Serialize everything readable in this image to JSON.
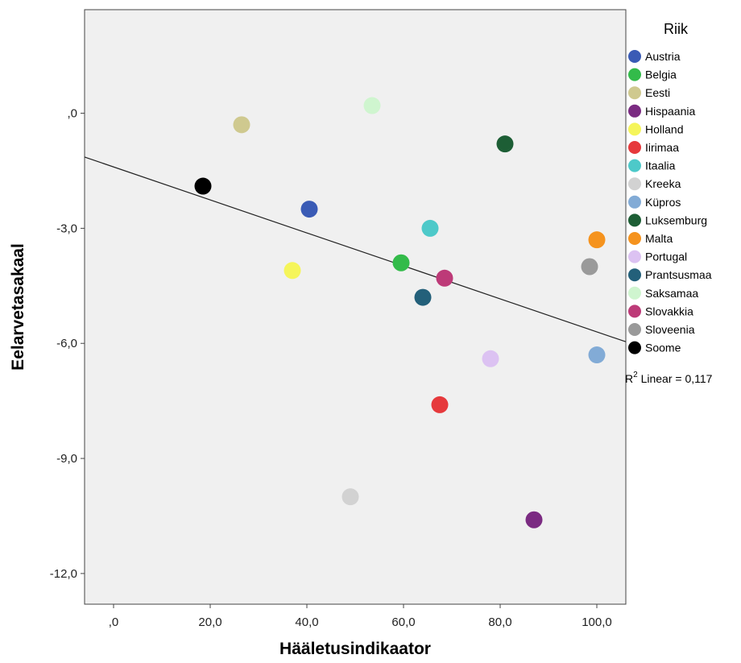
{
  "chart_data": {
    "type": "scatter",
    "xlabel": "Hääletusindikaator",
    "ylabel": "Eelarvetasakaal",
    "xlim": [
      -6,
      106
    ],
    "ylim": [
      -12.8,
      2.7
    ],
    "x_ticks": [
      {
        "value": 0,
        "label": ",0"
      },
      {
        "value": 20,
        "label": "20,0"
      },
      {
        "value": 40,
        "label": "40,0"
      },
      {
        "value": 60,
        "label": "60,0"
      },
      {
        "value": 80,
        "label": "80,0"
      },
      {
        "value": 100,
        "label": "100,0"
      }
    ],
    "y_ticks": [
      {
        "value": 0,
        "label": ",0"
      },
      {
        "value": -3,
        "label": "-3,0"
      },
      {
        "value": -6,
        "label": "-6,0"
      },
      {
        "value": -9,
        "label": "-9,0"
      },
      {
        "value": -12,
        "label": "-12,0"
      }
    ],
    "grid": false,
    "legend_title": "Riik",
    "legend_placement": "right",
    "series": [
      {
        "name": "Austria",
        "color": "#3a5bb5",
        "x": 40.5,
        "y": -2.5
      },
      {
        "name": "Belgia",
        "color": "#33bb4a",
        "x": 59.5,
        "y": -3.9
      },
      {
        "name": "Eesti",
        "color": "#cfc98f",
        "x": 26.5,
        "y": -0.3
      },
      {
        "name": "Hispaania",
        "color": "#7b2b82",
        "x": 87.0,
        "y": -10.6
      },
      {
        "name": "Holland",
        "color": "#f5f55a",
        "x": 37.0,
        "y": -4.1
      },
      {
        "name": "Iirimaa",
        "color": "#e6393c",
        "x": 67.5,
        "y": -7.6
      },
      {
        "name": "Itaalia",
        "color": "#4dc9c9",
        "x": 65.5,
        "y": -3.0
      },
      {
        "name": "Kreeka",
        "color": "#d2d2d2",
        "x": 49.0,
        "y": -10.0
      },
      {
        "name": "Küpros",
        "color": "#82abd6",
        "x": 100.0,
        "y": -6.3
      },
      {
        "name": "Luksemburg",
        "color": "#1d5e35",
        "x": 81.0,
        "y": -0.8
      },
      {
        "name": "Malta",
        "color": "#f5931e",
        "x": 100.0,
        "y": -3.3
      },
      {
        "name": "Portugal",
        "color": "#dcc2f2",
        "x": 78.0,
        "y": -6.4
      },
      {
        "name": "Prantsusmaa",
        "color": "#23607a",
        "x": 64.0,
        "y": -4.8
      },
      {
        "name": "Saksamaa",
        "color": "#cff5cf",
        "x": 53.5,
        "y": 0.2
      },
      {
        "name": "Slovakkia",
        "color": "#bd3a78",
        "x": 68.5,
        "y": -4.3
      },
      {
        "name": "Sloveenia",
        "color": "#9a9a9a",
        "x": 98.5,
        "y": -4.0
      },
      {
        "name": "Soome",
        "color": "#000000",
        "x": 18.5,
        "y": -1.9
      }
    ],
    "fit_line": {
      "type": "linear",
      "x_range": [
        -6,
        106
      ],
      "y_at_x0": -1.4,
      "y_at_x100": -5.7
    },
    "annotation": {
      "prefix": "R",
      "superscript": "2",
      "text": " Linear = 0,117"
    }
  }
}
